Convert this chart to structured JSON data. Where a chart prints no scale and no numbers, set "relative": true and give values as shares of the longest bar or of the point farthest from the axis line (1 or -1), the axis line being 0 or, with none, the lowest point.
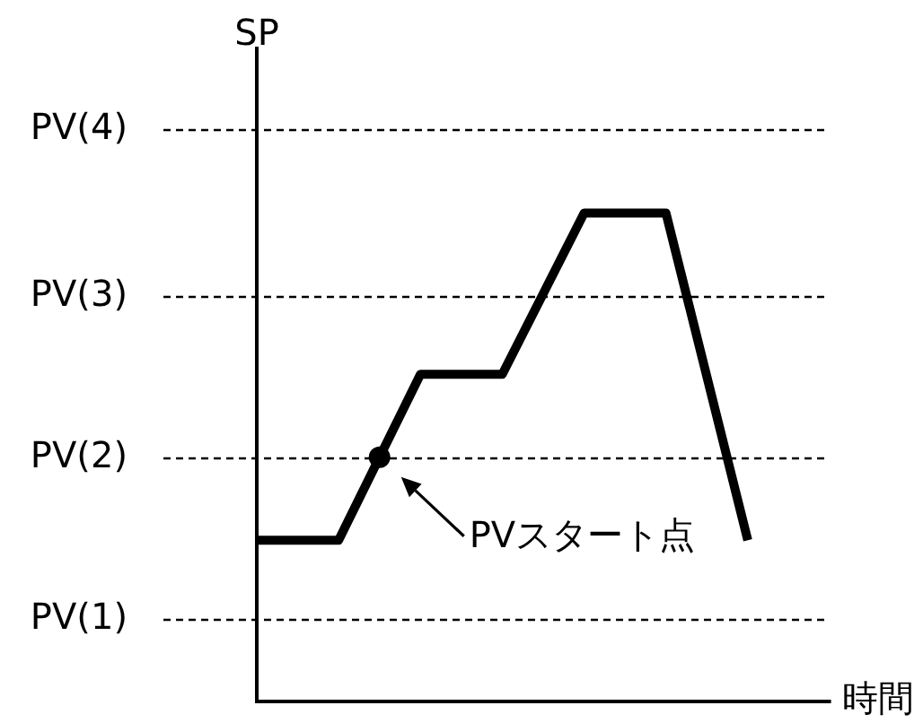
{
  "chart_data": {
    "type": "line",
    "xlabel": "時間",
    "ylabel": "SP",
    "relative": true,
    "categories": [
      null,
      null,
      null,
      null,
      null,
      null,
      null,
      null
    ],
    "series": [
      {
        "color": "#000000",
        "values": [
          0.33,
          0.33,
          0.67,
          0.67,
          1,
          1,
          0.33,
          null
        ]
      }
    ],
    "ref_lines": [
      {
        "axis": "y",
        "value": 0.17,
        "label": "PV(1)",
        "color": "#000000",
        "line_style": "dashed"
      },
      {
        "axis": "y",
        "value": 0.5,
        "label": "PV(2)",
        "color": "#000000",
        "line_style": "dashed"
      },
      {
        "axis": "y",
        "value": 0.83,
        "label": "PV(3)",
        "color": "#000000",
        "line_style": "dashed"
      },
      {
        "axis": "y",
        "value": 1.17,
        "label": "PV(4)",
        "color": "#000000",
        "line_style": "dashed"
      }
    ],
    "marker": "none",
    "line_style": "solid",
    "annotations": [
      {
        "text": "PVスタート点",
        "y": 0.5
      }
    ]
  }
}
